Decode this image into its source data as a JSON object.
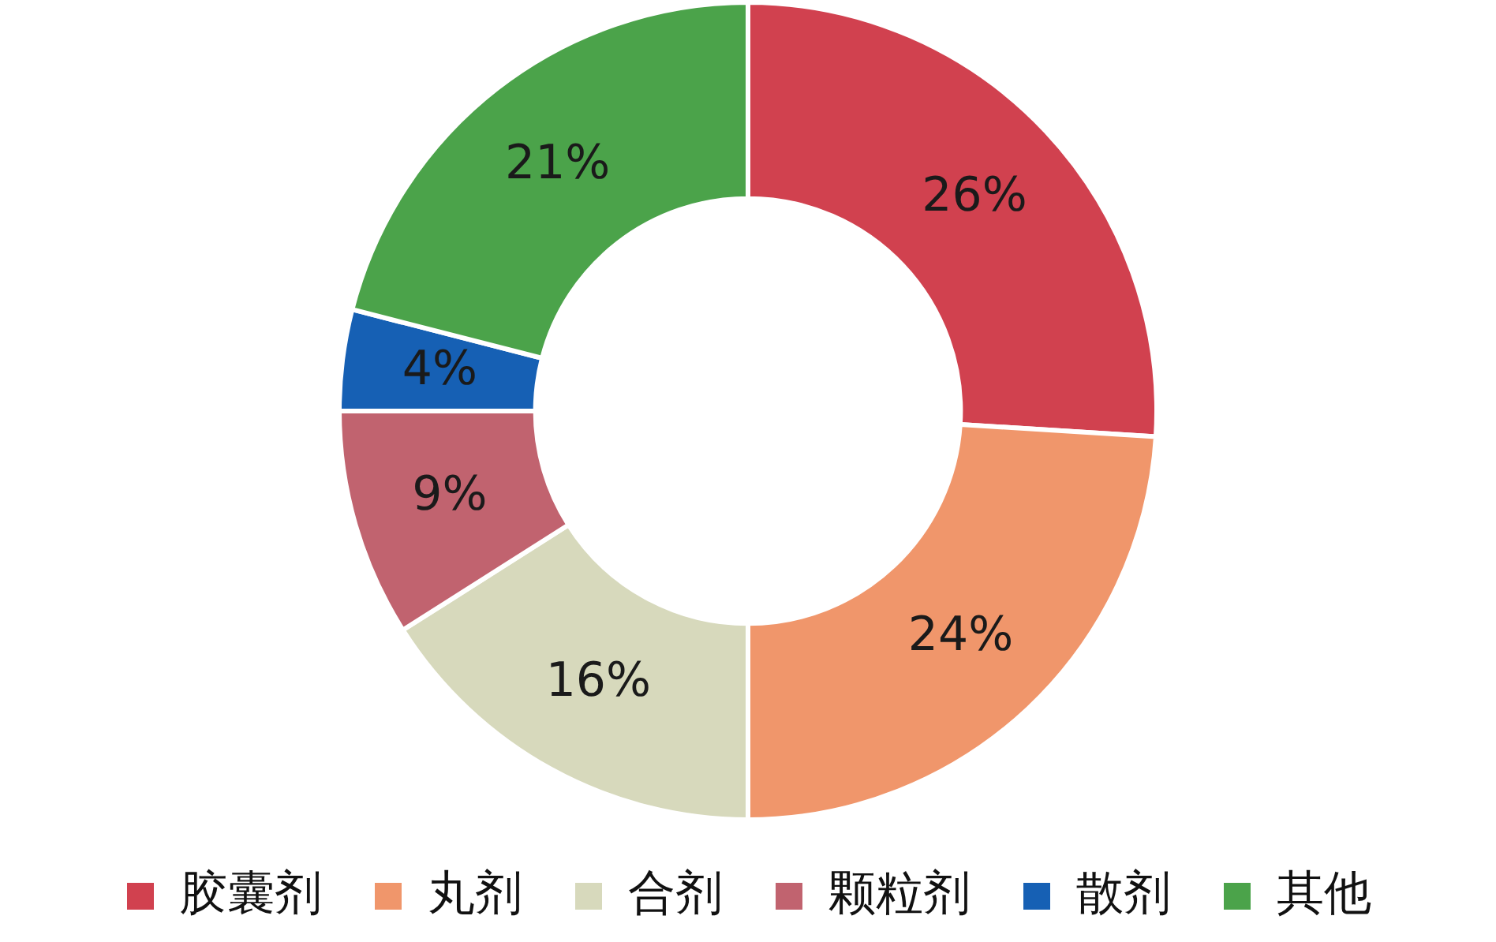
{
  "chart_data": {
    "type": "donut",
    "categories": [
      "胶囊剂",
      "丸剂",
      "合剂",
      "颗粒剂",
      "散剂",
      "其他"
    ],
    "values": [
      26,
      24,
      16,
      9,
      4,
      21
    ],
    "colors": [
      "#d1414f",
      "#f0966b",
      "#d7d9bc",
      "#c1636f",
      "#1660b4",
      "#4ba34a"
    ],
    "value_labels": [
      "26%",
      "24%",
      "16%",
      "9%",
      "4%",
      "21%"
    ],
    "legend": "bottom"
  }
}
